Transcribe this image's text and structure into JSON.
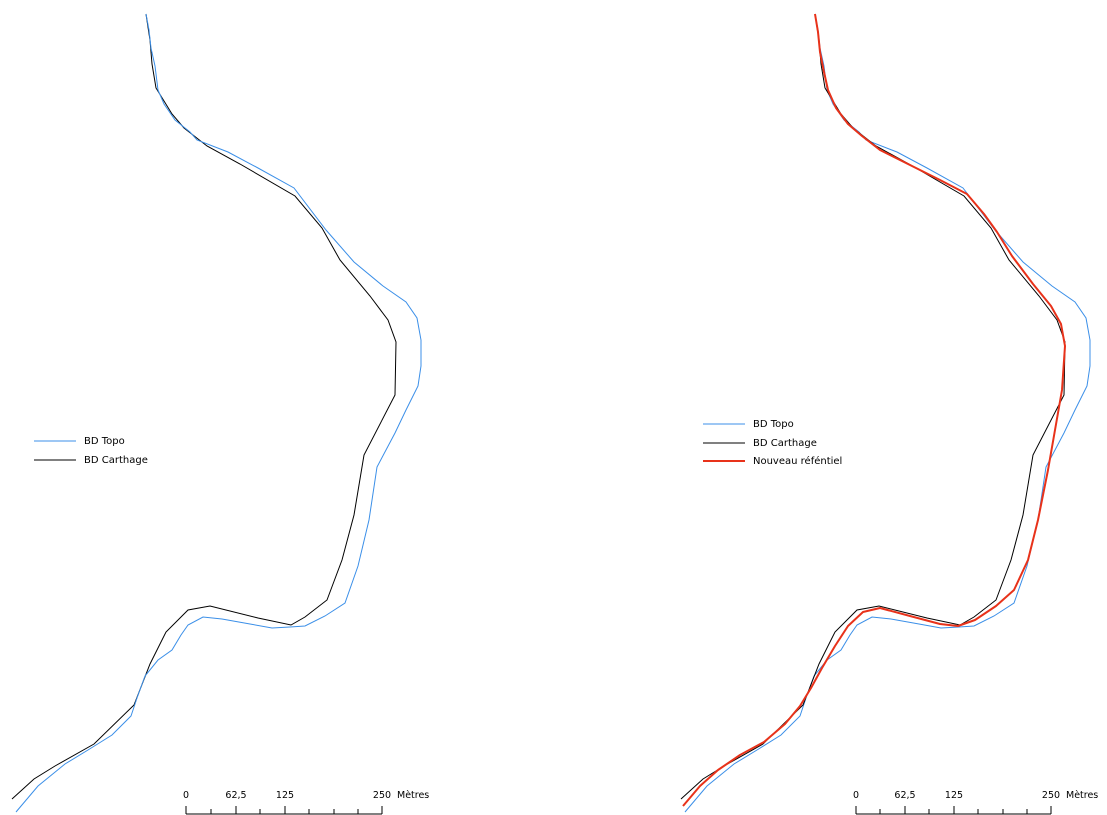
{
  "panels": [
    {
      "id": "left",
      "legend": [
        {
          "label": "BD Topo",
          "color": "#3b8fe8"
        },
        {
          "label": "BD Carthage",
          "color": "#000000"
        }
      ],
      "scale": {
        "ticks": [
          "0",
          "62,5",
          "125",
          "250"
        ],
        "unit": "Mètres"
      }
    },
    {
      "id": "right",
      "legend": [
        {
          "label": "BD Topo",
          "color": "#3b8fe8"
        },
        {
          "label": "BD Carthage",
          "color": "#000000"
        },
        {
          "label": "Nouveau réféntiel",
          "color": "#e8321a"
        }
      ],
      "scale": {
        "ticks": [
          "0",
          "62,5",
          "125",
          "250"
        ],
        "unit": "Mètres"
      }
    }
  ]
}
